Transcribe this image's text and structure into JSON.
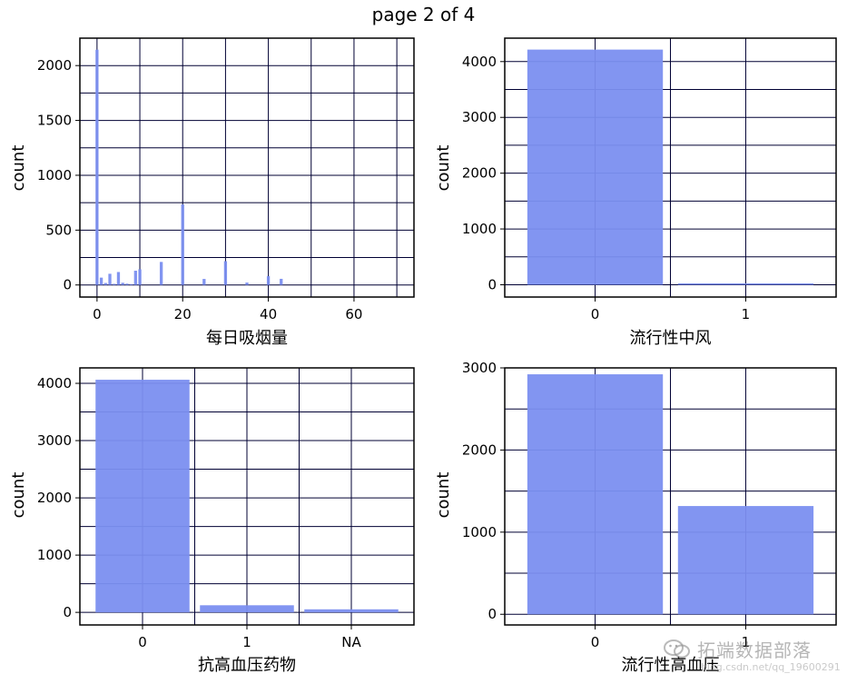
{
  "page_title": "page 2 of 4",
  "colors": {
    "bar": "#7b8ff0",
    "bar_stroke": "#6a7fe6",
    "grid": "#000033",
    "frame": "#000000"
  },
  "watermark": {
    "text": "拓端数据部落",
    "subtext": "blog.csdn.net/qq_19600291",
    "icon": "wechat-icon"
  },
  "chart_data": [
    {
      "type": "histogram",
      "xlabel": "每日吸烟量",
      "ylabel": "count",
      "xlim": [
        -4,
        74
      ],
      "ylim": [
        -110,
        2250
      ],
      "xticks": [
        0,
        20,
        40,
        60
      ],
      "yticks": [
        0,
        500,
        1000,
        1500,
        2000
      ],
      "bin_width": 0.7,
      "bins": [
        {
          "x": 0,
          "count": 2145
        },
        {
          "x": 1,
          "count": 67
        },
        {
          "x": 2,
          "count": 18
        },
        {
          "x": 3,
          "count": 102
        },
        {
          "x": 4,
          "count": 10
        },
        {
          "x": 5,
          "count": 118
        },
        {
          "x": 6,
          "count": 20
        },
        {
          "x": 7,
          "count": 12
        },
        {
          "x": 8,
          "count": 8
        },
        {
          "x": 9,
          "count": 130
        },
        {
          "x": 10,
          "count": 143
        },
        {
          "x": 15,
          "count": 210
        },
        {
          "x": 20,
          "count": 734
        },
        {
          "x": 25,
          "count": 55
        },
        {
          "x": 30,
          "count": 217
        },
        {
          "x": 35,
          "count": 22
        },
        {
          "x": 40,
          "count": 80
        },
        {
          "x": 43,
          "count": 56
        }
      ]
    },
    {
      "type": "bar",
      "xlabel": "流行性中风",
      "ylabel": "count",
      "categories": [
        "0",
        "1"
      ],
      "values": [
        4215,
        25
      ],
      "ylim": [
        -220,
        4420
      ],
      "yticks": [
        0,
        1000,
        2000,
        3000,
        4000
      ]
    },
    {
      "type": "bar",
      "xlabel": "抗高血压药物",
      "ylabel": "count",
      "categories": [
        "0",
        "1",
        "NA"
      ],
      "values": [
        4063,
        124,
        53
      ],
      "ylim": [
        -220,
        4270
      ],
      "yticks": [
        0,
        1000,
        2000,
        3000,
        4000
      ]
    },
    {
      "type": "bar",
      "xlabel": "流行性高血压",
      "ylabel": "count",
      "categories": [
        "0",
        "1"
      ],
      "values": [
        2922,
        1318
      ],
      "ylim": [
        -130,
        3000
      ],
      "yticks": [
        0,
        1000,
        2000,
        3000
      ]
    }
  ]
}
